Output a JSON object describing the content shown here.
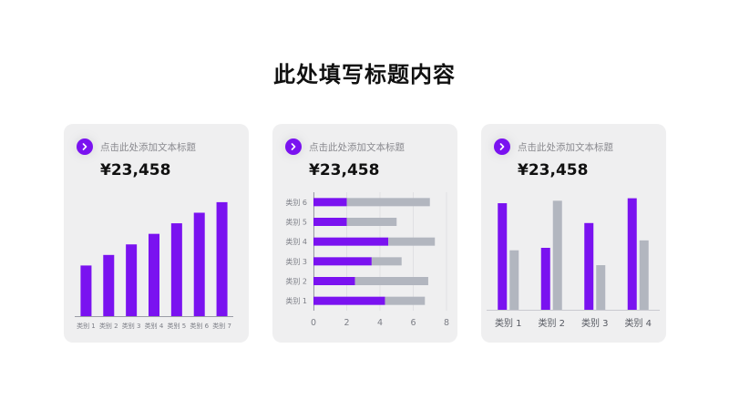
{
  "page": {
    "title": "此处填写标题内容"
  },
  "theme": {
    "accent": "#7a12f0",
    "secondary": "#b2b6bf",
    "card_bg": "#efeff0",
    "icon": "chevron-right-icon"
  },
  "cards": [
    {
      "subtitle": "点击此处添加文本标题",
      "value": "¥23,458"
    },
    {
      "subtitle": "点击此处添加文本标题",
      "value": "¥23,458"
    },
    {
      "subtitle": "点击此处添加文本标题",
      "value": "¥23,458"
    }
  ],
  "chart_data": [
    {
      "type": "bar",
      "categories": [
        "类别 1",
        "类别 2",
        "类别 3",
        "类别 4",
        "类别 5",
        "类别 6",
        "类别 7"
      ],
      "series": [
        {
          "values": [
            2.4,
            2.9,
            3.4,
            3.9,
            4.4,
            4.9,
            5.4
          ]
        }
      ],
      "ylim": [
        0,
        6
      ],
      "grid": false
    },
    {
      "type": "bar",
      "orientation": "horizontal",
      "stacked": true,
      "categories": [
        "类别 1",
        "类别 2",
        "类别 3",
        "类别 4",
        "类别 5",
        "类别 6"
      ],
      "series": [
        {
          "values": [
            4.3,
            2.5,
            3.5,
            4.5,
            2.0,
            2.0
          ]
        },
        {
          "values": [
            2.4,
            4.4,
            1.8,
            2.8,
            3.0,
            5.0
          ]
        }
      ],
      "x_ticks": [
        0,
        2,
        4,
        6,
        8
      ],
      "xlim": [
        0,
        8
      ],
      "grid": true
    },
    {
      "type": "bar",
      "categories": [
        "类别 1",
        "类别 2",
        "类别 3",
        "类别 4"
      ],
      "series": [
        {
          "values": [
            4.3,
            2.5,
            3.5,
            4.5
          ]
        },
        {
          "values": [
            2.4,
            4.4,
            1.8,
            2.8
          ]
        }
      ],
      "ylim": [
        0,
        5
      ],
      "grid": false
    }
  ]
}
